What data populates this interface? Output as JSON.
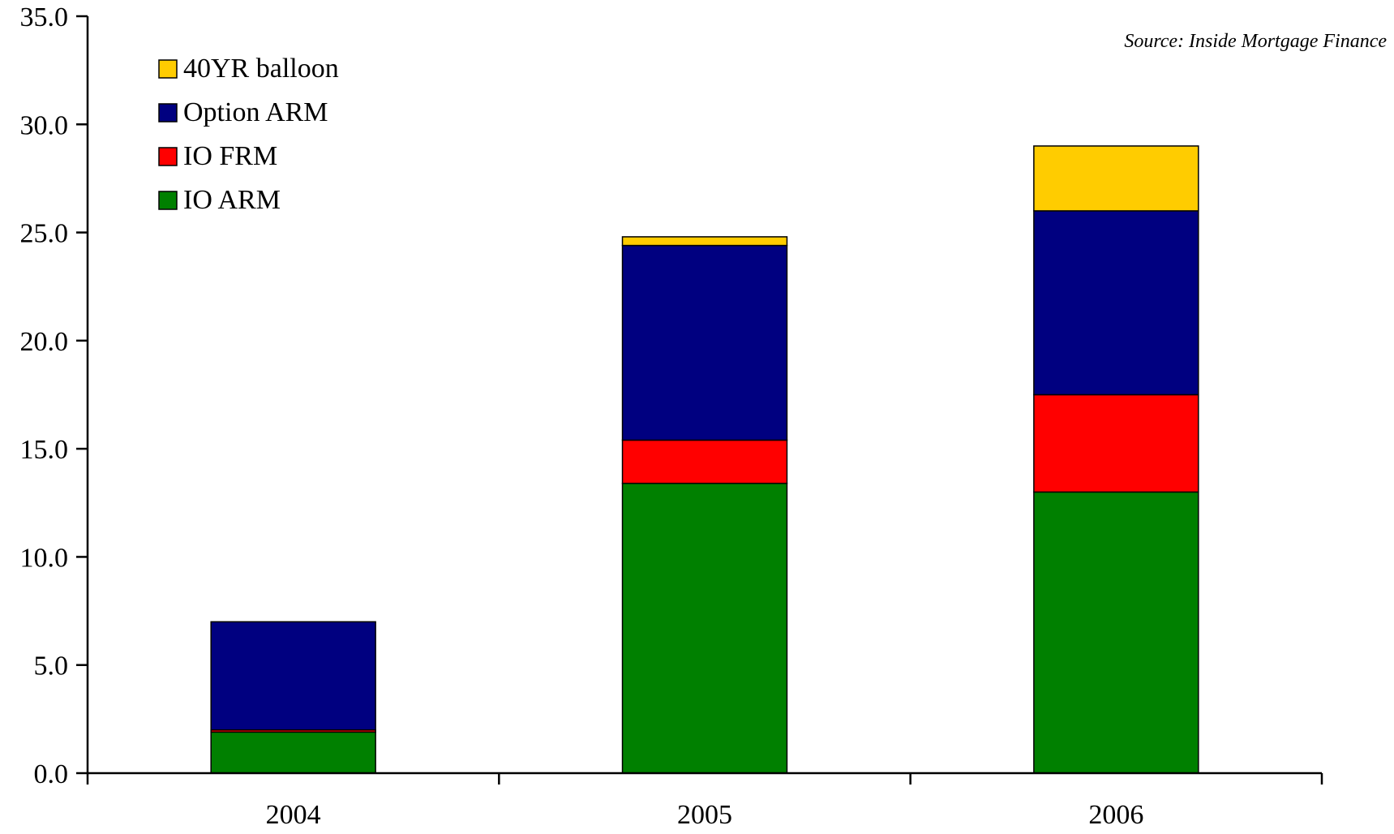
{
  "chart_data": {
    "type": "bar",
    "stacked": true,
    "categories": [
      "2004",
      "2005",
      "2006"
    ],
    "series": [
      {
        "name": "IO ARM",
        "color": "#008000",
        "values": [
          1.9,
          13.4,
          13.0
        ]
      },
      {
        "name": "IO FRM",
        "color": "#ff0000",
        "values": [
          0.1,
          2.0,
          4.5
        ]
      },
      {
        "name": "Option ARM",
        "color": "#000080",
        "values": [
          5.0,
          9.0,
          8.5
        ]
      },
      {
        "name": "40YR balloon",
        "color": "#ffcc00",
        "values": [
          0.0,
          0.4,
          3.0
        ]
      }
    ],
    "legend_order": [
      "40YR balloon",
      "Option ARM",
      "IO FRM",
      "IO ARM"
    ],
    "ylim": [
      0,
      35
    ],
    "yticks": [
      "0.0",
      "5.0",
      "10.0",
      "15.0",
      "20.0",
      "25.0",
      "30.0",
      "35.0"
    ],
    "ytick_step": 5,
    "title": "",
    "xlabel": "",
    "ylabel": "",
    "grid": false,
    "legend_position": "top-left",
    "annotation": "Source: Inside Mortgage Finance"
  }
}
